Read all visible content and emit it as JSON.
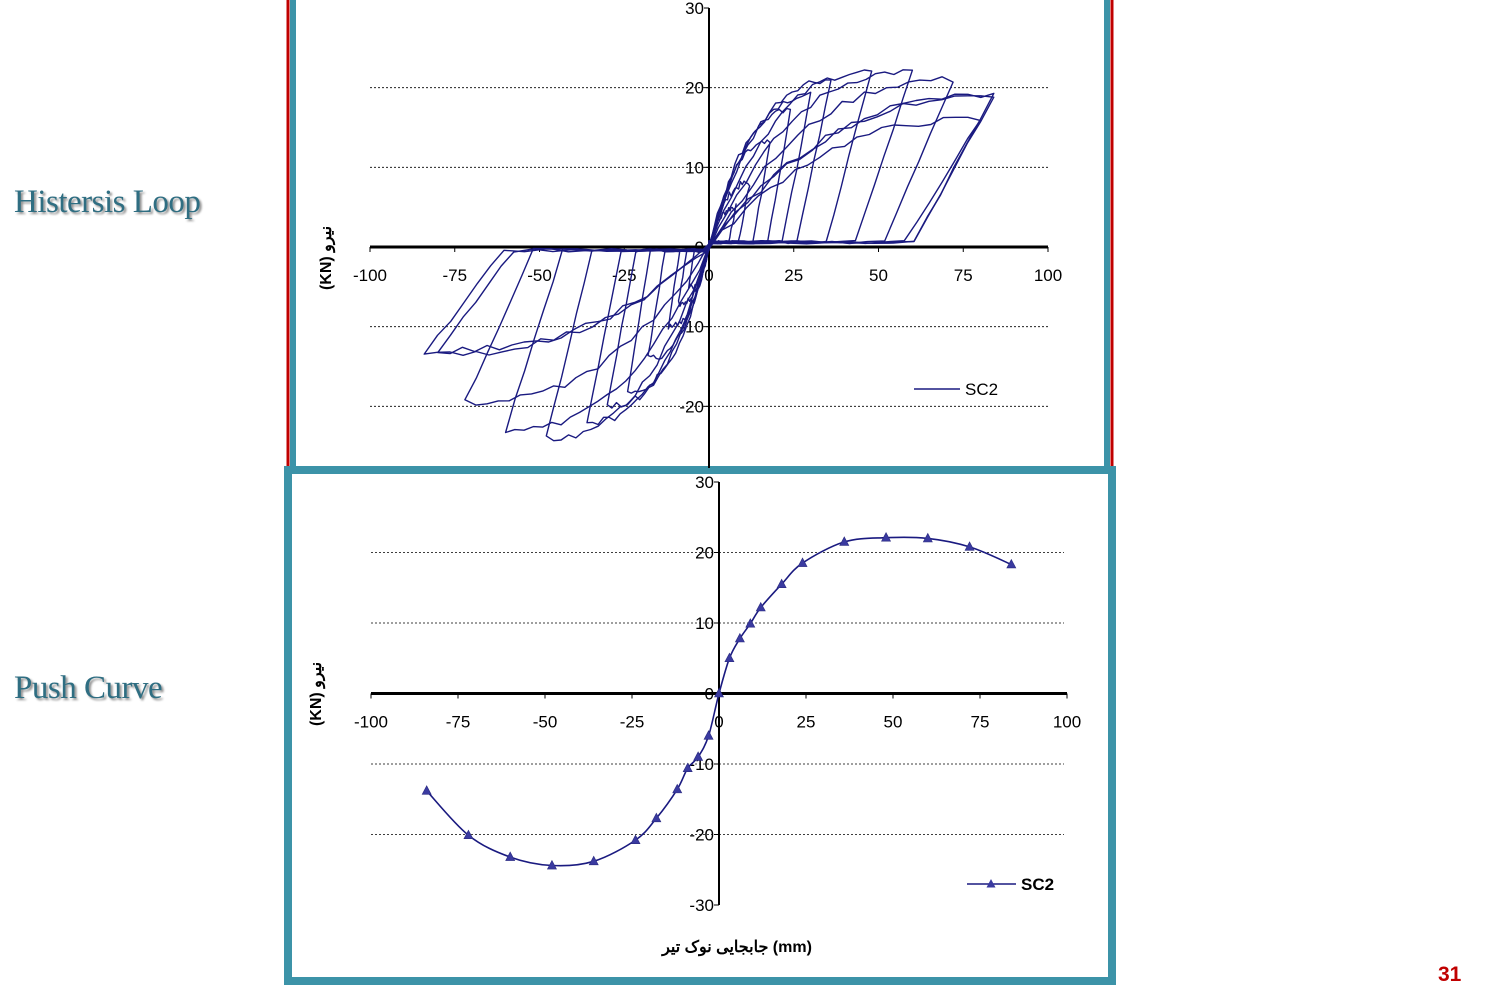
{
  "labels": {
    "hysteresis": "Histersis Loop",
    "push": "Push Curve",
    "page_number": "31"
  },
  "colors": {
    "frame_top_red": "#c00000",
    "frame_teal": "#3c93a8",
    "series": "#1a1a80",
    "side_label": "#2f6e82",
    "page_number": "#c00000"
  },
  "chart_data": [
    {
      "type": "line",
      "ylabel": "(KN) نیرو",
      "xlim": [
        -100,
        100
      ],
      "ylim": [
        -30,
        30
      ],
      "x_ticks": [
        "-100",
        "-75",
        "-50",
        "-25",
        "0",
        "25",
        "50",
        "75",
        "100"
      ],
      "y_ticks": [
        "30",
        "20",
        "10",
        "0",
        "-10",
        "-20"
      ],
      "grid": "horizontal dashed at ±10, ±20",
      "legend": {
        "position": "bottom-right",
        "entries": [
          "SC2"
        ]
      },
      "series": [
        {
          "name": "SC2",
          "marker": "none",
          "cycles": [
            {
              "pos": [
                8,
                5
              ],
              "neg": [
                -6,
                -5
              ]
            },
            {
              "pos": [
                12,
                8
              ],
              "neg": [
                -9,
                -7
              ]
            },
            {
              "pos": [
                18,
                13
              ],
              "neg": [
                -12,
                -10
              ]
            },
            {
              "pos": [
                24,
                17
              ],
              "neg": [
                -18,
                -14
              ]
            },
            {
              "pos": [
                30,
                19
              ],
              "neg": [
                -24,
                -18
              ]
            },
            {
              "pos": [
                36,
                21
              ],
              "neg": [
                -30,
                -20
              ]
            },
            {
              "pos": [
                48,
                22
              ],
              "neg": [
                -36,
                -22
              ]
            },
            {
              "pos": [
                60,
                22
              ],
              "neg": [
                -48,
                -24
              ]
            },
            {
              "pos": [
                72,
                21
              ],
              "neg": [
                -60,
                -23
              ]
            },
            {
              "pos": [
                84,
                19
              ],
              "neg": [
                -72,
                -19.5
              ]
            },
            {
              "pos": [
                80,
                16
              ],
              "neg": [
                -80,
                -13
              ]
            },
            {
              "pos": [
                84,
                19
              ],
              "neg": [
                -84,
                -13.5
              ]
            }
          ]
        }
      ]
    },
    {
      "type": "line",
      "ylabel": "(KN) نیرو",
      "xlabel": "جابجایی نوک تیر (mm)",
      "xlim": [
        -100,
        100
      ],
      "ylim": [
        -30,
        30
      ],
      "x_ticks": [
        "-100",
        "-75",
        "-50",
        "-25",
        "0",
        "25",
        "50",
        "75",
        "100"
      ],
      "y_ticks": [
        "30",
        "20",
        "10",
        "0",
        "-10",
        "-20",
        "-30"
      ],
      "grid": "horizontal dashed at ±10, ±20",
      "legend": {
        "position": "bottom-right",
        "entries": [
          "SC2"
        ]
      },
      "series": [
        {
          "name": "SC2",
          "marker": "triangle",
          "x": [
            -84,
            -72,
            -60,
            -48,
            -36,
            -24,
            -18,
            -12,
            -9,
            -6,
            -3,
            0,
            3,
            6,
            9,
            12,
            18,
            24,
            36,
            48,
            60,
            72,
            84
          ],
          "y": [
            -13.8,
            -20.1,
            -23.2,
            -24.4,
            -23.8,
            -20.8,
            -17.7,
            -13.6,
            -10.6,
            -9,
            -6,
            0,
            5,
            7.8,
            9.9,
            12.2,
            15.5,
            18.5,
            21.5,
            22.1,
            22,
            20.8,
            18.3
          ]
        }
      ]
    }
  ]
}
